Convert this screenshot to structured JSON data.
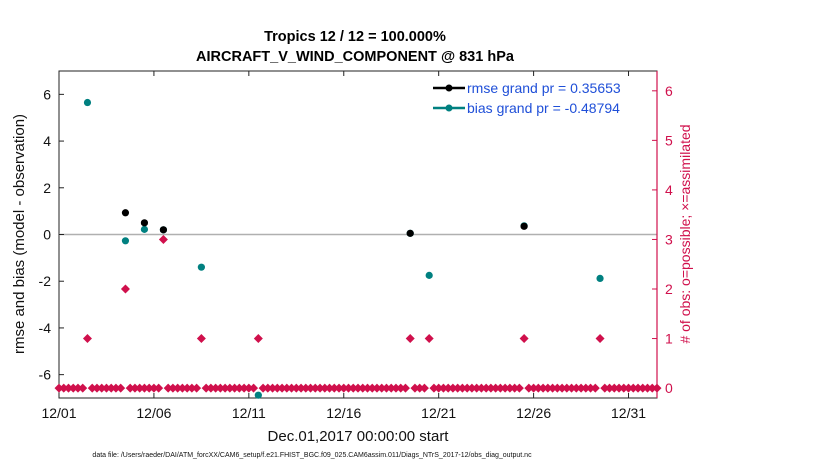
{
  "chart_data": {
    "type": "scatter",
    "title": "Tropics 12 / 12 = 100.000%",
    "subtitle": "AIRCRAFT_V_WIND_COMPONENT @ 831 hPa",
    "xlabel": "Dec.01,2017 00:00:00 start",
    "ylabel": "rmse and bias (model - observation)",
    "ylabel_right": "# of obs: o=possible; ×=assimilated",
    "x_unit": "days since Dec.01,2017",
    "xlim": [
      0,
      31.5
    ],
    "ylim": [
      -7,
      7
    ],
    "ylim_right": [
      -0.2,
      6.4
    ],
    "x_ticks": [
      "12/01",
      "12/06",
      "12/11",
      "12/16",
      "12/21",
      "12/26",
      "12/31"
    ],
    "y_ticks": [
      "-6",
      "-4",
      "-2",
      "0",
      "2",
      "4",
      "6"
    ],
    "y_ticks_right": [
      "0",
      "1",
      "2",
      "3",
      "4",
      "5",
      "6"
    ],
    "legend_position": "top-right",
    "colors": {
      "rmse": "#000000",
      "bias": "#008080",
      "obs": "#d0104c",
      "zero_line": "#b0b0b0",
      "legend_text": "#1f4fd8"
    },
    "series": [
      {
        "name": "rmse grand pr = 0.35653",
        "axis": "left",
        "x": [
          3.5,
          4.5,
          5.5,
          18.5,
          24.5
        ],
        "values": [
          0.93,
          0.5,
          0.2,
          0.05,
          0.35
        ]
      },
      {
        "name": "bias grand pr = -0.48794",
        "axis": "left",
        "x": [
          1.5,
          3.5,
          4.5,
          5.5,
          7.5,
          10.5,
          18.5,
          19.5,
          24.5,
          28.5
        ],
        "values": [
          5.65,
          -0.27,
          0.22,
          0.2,
          -1.4,
          -6.88,
          0.05,
          -1.75,
          0.37,
          -1.88
        ]
      },
      {
        "name": "obs",
        "axis": "right",
        "x": [
          1.5,
          3.5,
          5.5,
          7.5,
          10.5,
          18.5,
          19.5,
          24.5,
          28.5
        ],
        "values": [
          1,
          2,
          3,
          1,
          1,
          1,
          1,
          1,
          1
        ]
      }
    ],
    "zero_obs_step": 0.25,
    "zero_obs_exclude": [
      1.5,
      3.5,
      5.5,
      7.5,
      10.5,
      18.5,
      19.5,
      24.5,
      28.5
    ],
    "footnote": "data file: /Users/raeder/DAI/ATM_forcXX/CAM6_setup/f.e21.FHIST_BGC.f09_025.CAM6assim.011/Diags_NTrS_2017-12/obs_diag_output.nc"
  }
}
